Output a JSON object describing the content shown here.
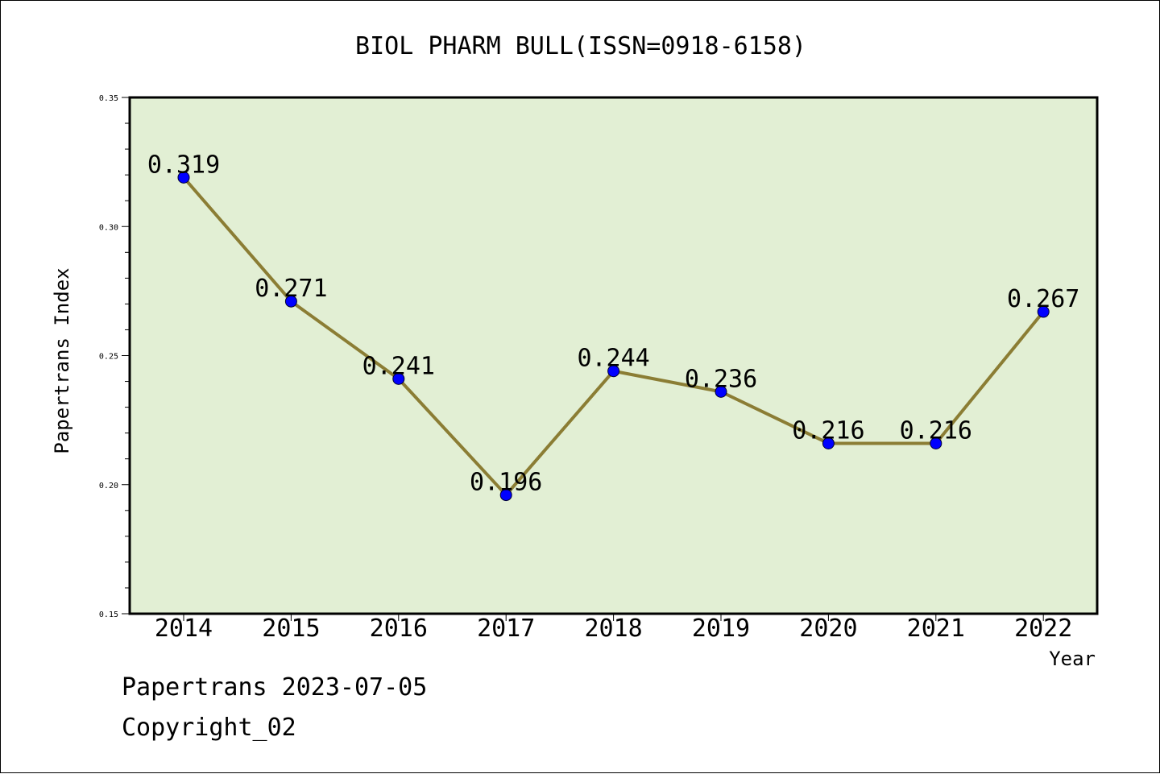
{
  "chart_data": {
    "type": "line",
    "title": "BIOL PHARM BULL(ISSN=0918-6158)",
    "xlabel": "Year",
    "ylabel": "Papertrans Index",
    "categories": [
      "2014",
      "2015",
      "2016",
      "2017",
      "2018",
      "2019",
      "2020",
      "2021",
      "2022"
    ],
    "values": [
      0.319,
      0.271,
      0.241,
      0.196,
      0.244,
      0.236,
      0.216,
      0.216,
      0.267
    ],
    "data_labels": [
      "0.319",
      "0.271",
      "0.241",
      "0.196",
      "0.244",
      "0.236",
      "0.216",
      "0.216",
      "0.267"
    ],
    "yticks": [
      "0.15",
      "0.20",
      "0.25",
      "0.30",
      "0.35"
    ],
    "ylim": [
      0.15,
      0.35
    ],
    "grid": false,
    "colors": {
      "plot_background": "#e2efd4",
      "line": "#8b7d34",
      "marker": "#0000ff"
    }
  },
  "footer": {
    "line1": "Papertrans 2023-07-05",
    "line2": "Copyright_02"
  }
}
